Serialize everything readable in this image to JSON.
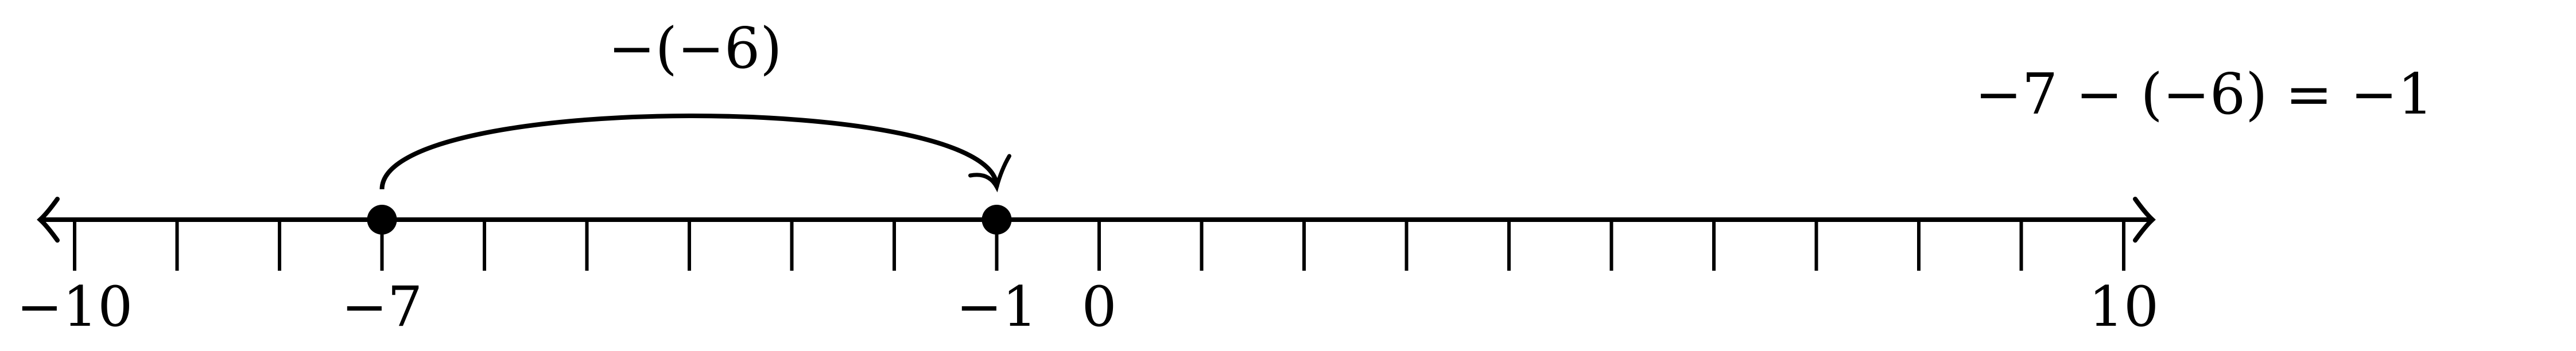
{
  "diagram": {
    "tick_values": [
      -10,
      -9,
      -8,
      -7,
      -6,
      -5,
      -4,
      -3,
      -2,
      -1,
      0,
      1,
      2,
      3,
      4,
      5,
      6,
      7,
      8,
      9,
      10
    ],
    "labels": [
      {
        "value": -10,
        "text": "−10"
      },
      {
        "value": -7,
        "text": "−7"
      },
      {
        "value": -1,
        "text": "−1"
      },
      {
        "value": 0,
        "text": "0"
      },
      {
        "value": 10,
        "text": "10"
      }
    ],
    "points": [
      -7,
      -1
    ],
    "jump": {
      "from": -7,
      "to": -1,
      "label": "−(−6)"
    },
    "equation": "−7 − (−6) = −1",
    "color": "#000000"
  }
}
